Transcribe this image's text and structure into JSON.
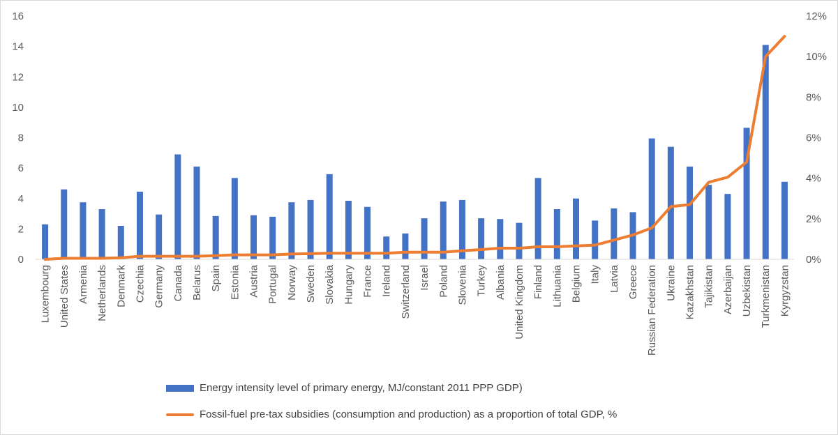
{
  "chart_data": {
    "type": "bar",
    "categories": [
      "Luxembourg",
      "United States",
      "Armenia",
      "Netherlands",
      "Denmark",
      "Czechia",
      "Germany",
      "Canada",
      "Belarus",
      "Spain",
      "Estonia",
      "Austria",
      "Portugal",
      "Norway",
      "Sweden",
      "Slovakia",
      "Hungary",
      "France",
      "Ireland",
      "Switzerland",
      "Israel",
      "Poland",
      "Slovenia",
      "Turkey",
      "Albania",
      "United Kingdom",
      "Finland",
      "Lithuania",
      "Belgium",
      "Italy",
      "Latvia",
      "Greece",
      "Russian Federation",
      "Ukraine",
      "Kazakhstan",
      "Tajikistan",
      "Azerbaijan",
      "Uzbekistan",
      "Turkmenistan",
      "Kyrgyzstan"
    ],
    "series": [
      {
        "name": "Energy intensity level of primary energy, MJ/constant 2011 PPP GDP)",
        "type": "bar",
        "axis": "left",
        "color": "#4472c4",
        "values": [
          2.3,
          4.6,
          3.75,
          3.3,
          2.2,
          4.45,
          2.95,
          6.9,
          6.1,
          2.85,
          5.35,
          2.9,
          2.8,
          3.75,
          3.9,
          5.6,
          3.85,
          3.45,
          1.5,
          1.7,
          2.7,
          3.8,
          3.9,
          2.7,
          2.65,
          2.4,
          5.35,
          3.3,
          4.0,
          2.55,
          3.35,
          3.1,
          7.95,
          7.4,
          6.1,
          4.9,
          4.3,
          8.65,
          14.1,
          5.1
        ]
      },
      {
        "name": "Fossil-fuel pre-tax subsidies (consumption and production) as a proportion of total GDP, %",
        "type": "line",
        "axis": "right",
        "color": "#ed7d31",
        "values": [
          0.0,
          0.05,
          0.05,
          0.05,
          0.08,
          0.15,
          0.15,
          0.15,
          0.15,
          0.18,
          0.22,
          0.22,
          0.22,
          0.26,
          0.28,
          0.3,
          0.3,
          0.3,
          0.3,
          0.35,
          0.35,
          0.35,
          0.42,
          0.48,
          0.55,
          0.55,
          0.62,
          0.62,
          0.66,
          0.7,
          0.95,
          1.2,
          1.55,
          2.6,
          2.7,
          3.8,
          4.05,
          4.8,
          10.0,
          11.0
        ]
      }
    ],
    "y_left": {
      "lim": [
        0,
        16
      ],
      "ticks": [
        "0",
        "2",
        "4",
        "6",
        "8",
        "10",
        "12",
        "14",
        "16"
      ]
    },
    "y_right": {
      "lim": [
        0,
        12
      ],
      "ticks": [
        "0%",
        "2%",
        "4%",
        "6%",
        "8%",
        "10%",
        "12%"
      ]
    },
    "grid": false,
    "legend_position": "bottom"
  }
}
